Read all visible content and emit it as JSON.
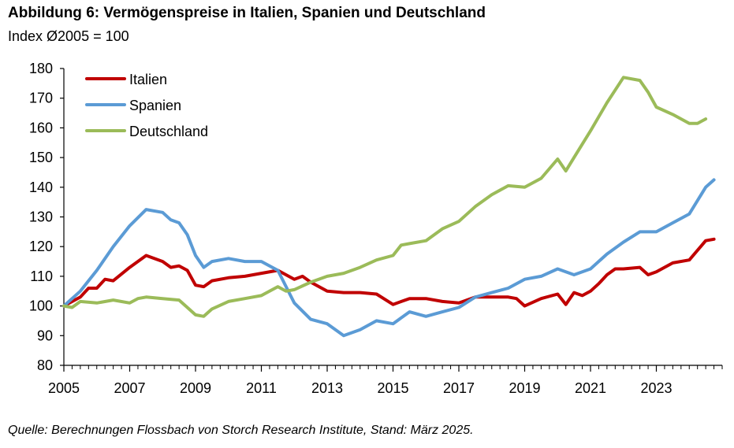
{
  "header": {
    "title": "Abbildung 6: Vermögenspreise in Italien, Spanien und Deutschland",
    "subtitle": "Index Ø2005 = 100"
  },
  "footer": {
    "source": "Quelle: Berechnungen Flossbach von Storch Research Institute, Stand: März 2025."
  },
  "colors": {
    "italien": "#c00000",
    "spanien": "#5b9bd5",
    "deutschland": "#9bbb59",
    "axis": "#000000"
  },
  "chart_data": {
    "type": "line",
    "title": "Abbildung 6: Vermögenspreise in Italien, Spanien und Deutschland",
    "ylabel": "Index Ø2005 = 100",
    "xlabel": "",
    "ylim": [
      80,
      180
    ],
    "yticks": [
      80,
      90,
      100,
      110,
      120,
      130,
      140,
      150,
      160,
      170,
      180
    ],
    "xlim": [
      2005,
      2025
    ],
    "xticks": [
      2005,
      2007,
      2009,
      2011,
      2013,
      2015,
      2017,
      2019,
      2021,
      2023
    ],
    "grid": false,
    "legend_position": "top-left",
    "series": [
      {
        "name": "Italien",
        "color": "#c00000",
        "x": [
          2005.0,
          2005.5,
          2005.75,
          2006.0,
          2006.25,
          2006.5,
          2007.0,
          2007.5,
          2008.0,
          2008.25,
          2008.5,
          2008.75,
          2009.0,
          2009.25,
          2009.5,
          2010.0,
          2010.5,
          2011.0,
          2011.5,
          2012.0,
          2012.25,
          2012.5,
          2013.0,
          2013.5,
          2014.0,
          2014.5,
          2015.0,
          2015.5,
          2016.0,
          2016.5,
          2017.0,
          2017.5,
          2018.0,
          2018.5,
          2018.75,
          2019.0,
          2019.5,
          2020.0,
          2020.25,
          2020.5,
          2020.75,
          2021.0,
          2021.25,
          2021.5,
          2021.75,
          2022.0,
          2022.5,
          2022.75,
          2023.0,
          2023.5,
          2024.0,
          2024.5,
          2024.75
        ],
        "values": [
          100,
          103,
          106,
          106,
          109,
          108.5,
          113,
          117,
          115,
          113,
          113.5,
          112,
          107,
          106.5,
          108.5,
          109.5,
          110,
          111,
          112,
          109,
          110,
          108,
          105,
          104.5,
          104.5,
          104,
          100.5,
          102.5,
          102.5,
          101.5,
          101,
          103,
          103,
          103,
          102.5,
          100,
          102.5,
          104,
          100.5,
          104.5,
          103.5,
          105,
          107.5,
          110.5,
          112.5,
          112.5,
          113,
          110.5,
          111.5,
          114.5,
          115.5,
          122,
          122.5
        ]
      },
      {
        "name": "Spanien",
        "color": "#5b9bd5",
        "x": [
          2005.0,
          2005.5,
          2006.0,
          2006.5,
          2007.0,
          2007.5,
          2008.0,
          2008.25,
          2008.5,
          2008.75,
          2009.0,
          2009.25,
          2009.5,
          2010.0,
          2010.5,
          2011.0,
          2011.5,
          2012.0,
          2012.5,
          2013.0,
          2013.5,
          2014.0,
          2014.5,
          2015.0,
          2015.5,
          2016.0,
          2016.5,
          2017.0,
          2017.5,
          2018.0,
          2018.5,
          2019.0,
          2019.5,
          2020.0,
          2020.5,
          2021.0,
          2021.5,
          2022.0,
          2022.5,
          2023.0,
          2023.5,
          2024.0,
          2024.5,
          2024.75
        ],
        "values": [
          100,
          105,
          112,
          120,
          127,
          132.5,
          131.5,
          129,
          128,
          124,
          117,
          113,
          115,
          116,
          115,
          115,
          112,
          101,
          95.5,
          94,
          90,
          92,
          95,
          94,
          98,
          96.5,
          98,
          99.5,
          103,
          104.5,
          106,
          109,
          110,
          112.5,
          110.5,
          112.5,
          117.5,
          121.5,
          125,
          125,
          128,
          131,
          140,
          142.5
        ]
      },
      {
        "name": "Deutschland",
        "color": "#9bbb59",
        "x": [
          2005.0,
          2005.25,
          2005.5,
          2006.0,
          2006.5,
          2007.0,
          2007.25,
          2007.5,
          2008.0,
          2008.5,
          2008.75,
          2009.0,
          2009.25,
          2009.5,
          2010.0,
          2010.5,
          2011.0,
          2011.5,
          2011.75,
          2012.0,
          2012.5,
          2013.0,
          2013.5,
          2014.0,
          2014.5,
          2015.0,
          2015.25,
          2015.5,
          2016.0,
          2016.5,
          2017.0,
          2017.5,
          2018.0,
          2018.5,
          2019.0,
          2019.5,
          2020.0,
          2020.25,
          2020.5,
          2021.0,
          2021.5,
          2022.0,
          2022.5,
          2022.75,
          2023.0,
          2023.5,
          2024.0,
          2024.25,
          2024.5
        ],
        "values": [
          100,
          99.5,
          101.5,
          101,
          102,
          101,
          102.5,
          103,
          102.5,
          102,
          99.5,
          97,
          96.5,
          99,
          101.5,
          102.5,
          103.5,
          106.5,
          105,
          105.5,
          108,
          110,
          111,
          113,
          115.5,
          117,
          120.5,
          121,
          122,
          126,
          128.5,
          133.5,
          137.5,
          140.5,
          140,
          143,
          149.5,
          145.5,
          150,
          159,
          168.5,
          177,
          176,
          172,
          167,
          164.5,
          161.5,
          161.5,
          163
        ]
      }
    ]
  }
}
